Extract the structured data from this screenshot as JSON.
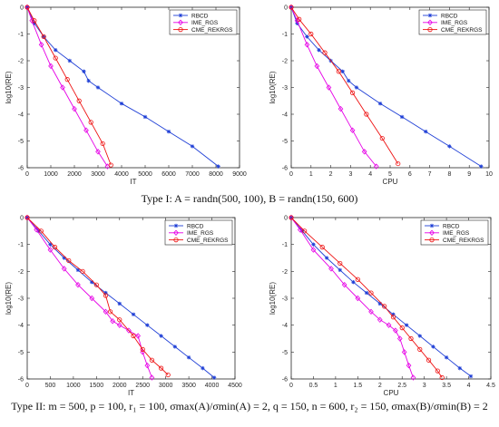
{
  "captions": [
    "Type I: A = randn(500, 100), B = randn(150, 600)",
    "Type II: m = 500, p = 100, r₁ = 100, σmax(A)/σmin(A) = 2, q = 150, n = 600, r₂ = 150, σmax(B)/σmin(B) = 2"
  ],
  "chart_data": [
    {
      "type": "line",
      "xlabel": "IT",
      "ylabel": "log10(RE)",
      "xlim": [
        0,
        9000
      ],
      "ylim": [
        -6,
        0
      ],
      "xticks": [
        "0",
        "1000",
        "2000",
        "3000",
        "4000",
        "5000",
        "6000",
        "7000",
        "8000",
        "9000"
      ],
      "yticks": [
        "0",
        "-1",
        "-2",
        "-3",
        "-4",
        "-5",
        "-6"
      ],
      "legend_position": "top-right",
      "series": [
        {
          "name": "RBCD",
          "color": "#1f3fd6",
          "marker": "star",
          "x": [
            0,
            300,
            700,
            1200,
            1800,
            2400,
            2600,
            3000,
            4000,
            5000,
            6000,
            7000,
            8100
          ],
          "y": [
            0,
            -0.6,
            -1.1,
            -1.6,
            -2.0,
            -2.4,
            -2.75,
            -3.0,
            -3.6,
            -4.1,
            -4.65,
            -5.2,
            -5.95
          ]
        },
        {
          "name": "IME_RGS",
          "color": "#e600e6",
          "marker": "diamond",
          "x": [
            0,
            200,
            600,
            1000,
            1500,
            2000,
            2500,
            3000,
            3400
          ],
          "y": [
            0,
            -0.5,
            -1.4,
            -2.2,
            -3.0,
            -3.8,
            -4.6,
            -5.4,
            -5.95
          ]
        },
        {
          "name": "CME_REKRGS",
          "color": "#ee1111",
          "marker": "circle",
          "x": [
            0,
            300,
            700,
            1200,
            1700,
            2200,
            2700,
            3200,
            3550
          ],
          "y": [
            0,
            -0.5,
            -1.1,
            -1.9,
            -2.7,
            -3.5,
            -4.3,
            -5.1,
            -5.9
          ]
        }
      ]
    },
    {
      "type": "line",
      "xlabel": "CPU",
      "ylabel": "log10(RE)",
      "xlim": [
        0,
        10
      ],
      "ylim": [
        -6,
        0
      ],
      "xticks": [
        "0",
        "1",
        "2",
        "3",
        "4",
        "5",
        "6",
        "7",
        "8",
        "9",
        "10"
      ],
      "yticks": [
        "0",
        "-1",
        "-2",
        "-3",
        "-4",
        "-5",
        "-6"
      ],
      "legend_position": "top-right",
      "series": [
        {
          "name": "RBCD",
          "color": "#1f3fd6",
          "marker": "star",
          "x": [
            0,
            0.3,
            0.8,
            1.4,
            2.0,
            2.6,
            2.9,
            3.3,
            4.5,
            5.6,
            6.8,
            8.0,
            9.6
          ],
          "y": [
            0,
            -0.6,
            -1.1,
            -1.6,
            -2.0,
            -2.4,
            -2.75,
            -3.0,
            -3.6,
            -4.1,
            -4.65,
            -5.2,
            -5.95
          ]
        },
        {
          "name": "IME_RGS",
          "color": "#e600e6",
          "marker": "diamond",
          "x": [
            0,
            0.3,
            0.8,
            1.3,
            1.9,
            2.5,
            3.1,
            3.7,
            4.3
          ],
          "y": [
            0,
            -0.5,
            -1.4,
            -2.2,
            -3.0,
            -3.8,
            -4.6,
            -5.4,
            -5.95
          ]
        },
        {
          "name": "CME_REKRGS",
          "color": "#ee1111",
          "marker": "circle",
          "x": [
            0,
            0.4,
            1.0,
            1.7,
            2.4,
            3.1,
            3.8,
            4.6,
            5.4
          ],
          "y": [
            0,
            -0.45,
            -1.0,
            -1.7,
            -2.4,
            -3.2,
            -4.0,
            -4.9,
            -5.85
          ]
        }
      ]
    },
    {
      "type": "line",
      "xlabel": "IT",
      "ylabel": "log10(RE)",
      "xlim": [
        0,
        4500
      ],
      "ylim": [
        -6,
        0
      ],
      "xticks": [
        "0",
        "500",
        "1000",
        "1500",
        "2000",
        "2500",
        "3000",
        "3500",
        "4000",
        "4500"
      ],
      "yticks": [
        "0",
        "-1",
        "-2",
        "-3",
        "-4",
        "-5",
        "-6"
      ],
      "legend_position": "top-right",
      "series": [
        {
          "name": "RBCD",
          "color": "#1f3fd6",
          "marker": "star",
          "x": [
            0,
            250,
            500,
            800,
            1100,
            1400,
            1700,
            2000,
            2300,
            2600,
            2900,
            3200,
            3500,
            3800,
            4050
          ],
          "y": [
            0,
            -0.5,
            -1.0,
            -1.5,
            -1.95,
            -2.4,
            -2.8,
            -3.2,
            -3.6,
            -4.0,
            -4.4,
            -4.8,
            -5.2,
            -5.6,
            -5.95
          ]
        },
        {
          "name": "IME_RGS",
          "color": "#e600e6",
          "marker": "diamond",
          "x": [
            0,
            200,
            500,
            800,
            1100,
            1400,
            1700,
            1850,
            2000,
            2200,
            2400,
            2500,
            2600,
            2700
          ],
          "y": [
            0,
            -0.45,
            -1.2,
            -1.9,
            -2.5,
            -3.0,
            -3.5,
            -3.85,
            -4.0,
            -4.2,
            -4.4,
            -5.0,
            -5.5,
            -5.95
          ]
        },
        {
          "name": "CME_REKRGS",
          "color": "#ee1111",
          "marker": "circle",
          "x": [
            0,
            300,
            600,
            900,
            1200,
            1500,
            1700,
            1800,
            2000,
            2300,
            2500,
            2700,
            2900,
            3050
          ],
          "y": [
            0,
            -0.5,
            -1.1,
            -1.6,
            -2.0,
            -2.5,
            -2.9,
            -3.5,
            -3.8,
            -4.4,
            -4.9,
            -5.3,
            -5.6,
            -5.85
          ]
        }
      ]
    },
    {
      "type": "line",
      "xlabel": "CPU",
      "ylabel": "log10(RE)",
      "xlim": [
        0,
        4.5
      ],
      "ylim": [
        -6,
        0
      ],
      "xticks": [
        "0",
        "0.5",
        "1",
        "1.5",
        "2",
        "2.5",
        "3",
        "3.5",
        "4",
        "4.5"
      ],
      "yticks": [
        "0",
        "-1",
        "-2",
        "-3",
        "-4",
        "-5",
        "-6"
      ],
      "legend_position": "top-right",
      "series": [
        {
          "name": "RBCD",
          "color": "#1f3fd6",
          "marker": "star",
          "x": [
            0,
            0.25,
            0.5,
            0.8,
            1.1,
            1.4,
            1.7,
            2.0,
            2.3,
            2.6,
            2.9,
            3.2,
            3.5,
            3.8,
            4.05
          ],
          "y": [
            0,
            -0.5,
            -1.0,
            -1.5,
            -1.95,
            -2.4,
            -2.8,
            -3.2,
            -3.6,
            -4.0,
            -4.4,
            -4.8,
            -5.2,
            -5.6,
            -5.9
          ]
        },
        {
          "name": "IME_RGS",
          "color": "#e600e6",
          "marker": "diamond",
          "x": [
            0,
            0.2,
            0.5,
            0.9,
            1.2,
            1.5,
            1.8,
            2.0,
            2.2,
            2.35,
            2.45,
            2.55,
            2.65,
            2.75
          ],
          "y": [
            0,
            -0.45,
            -1.2,
            -1.9,
            -2.5,
            -3.0,
            -3.5,
            -3.8,
            -4.0,
            -4.2,
            -4.5,
            -5.0,
            -5.5,
            -5.95
          ]
        },
        {
          "name": "CME_REKRGS",
          "color": "#ee1111",
          "marker": "circle",
          "x": [
            0,
            0.3,
            0.7,
            1.1,
            1.5,
            1.8,
            2.1,
            2.3,
            2.5,
            2.7,
            2.9,
            3.1,
            3.3,
            3.4
          ],
          "y": [
            0,
            -0.5,
            -1.1,
            -1.7,
            -2.3,
            -2.8,
            -3.3,
            -3.7,
            -4.1,
            -4.5,
            -4.9,
            -5.3,
            -5.7,
            -5.95
          ]
        }
      ]
    }
  ]
}
